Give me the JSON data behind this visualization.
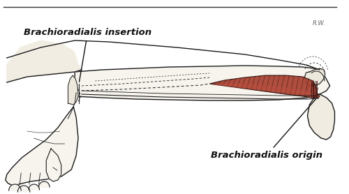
{
  "bg_color": "#ffffff",
  "label1_text": "Brachioradialis origin",
  "label2_text": "Brachioradialis insertion",
  "muscle_color": "#a84030",
  "outline_color": "#1a1a1a",
  "skin_fill": "#f7f4ee",
  "figsize": [
    5.0,
    2.78
  ],
  "dpi": 100
}
